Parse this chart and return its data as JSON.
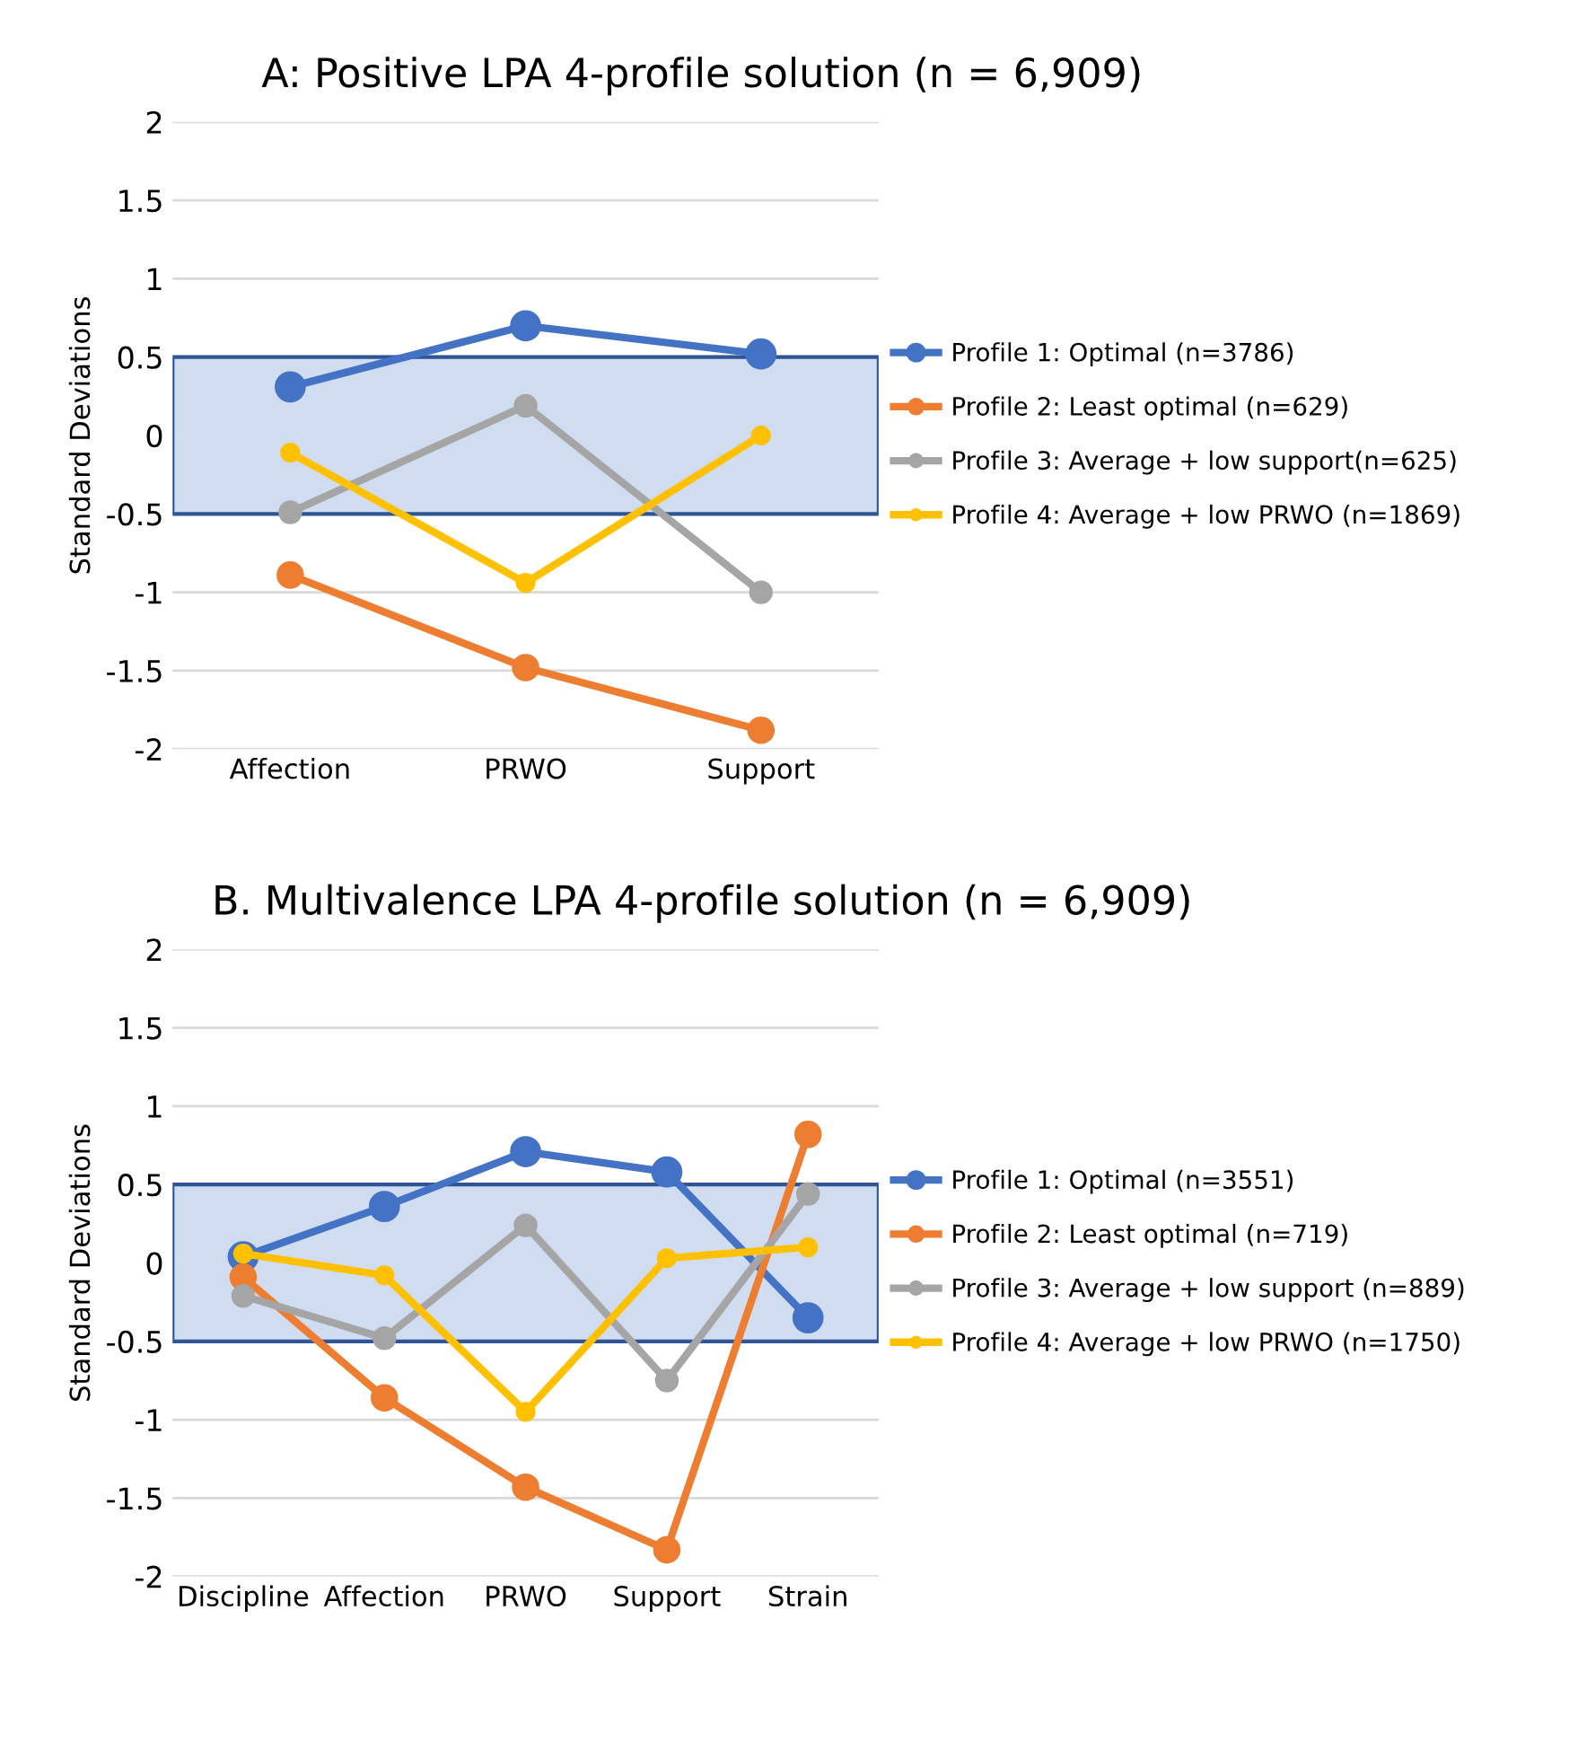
{
  "chart_data": [
    {
      "type": "line",
      "title": "A: Positive LPA 4-profile solution (n = 6,909)",
      "ylabel": "Standard Deviations",
      "categories": [
        "Affection",
        "PRWO",
        "Support"
      ],
      "ylim": [
        -2,
        2
      ],
      "yticks": [
        {
          "value": -2,
          "label": "-2"
        },
        {
          "value": -1.5,
          "label": "-1.5"
        },
        {
          "value": -1,
          "label": "-1"
        },
        {
          "value": -0.5,
          "label": "-0.5"
        },
        0,
        0.5,
        1,
        1.5,
        2
      ],
      "grid": "y",
      "legend": "right",
      "marker": "circle",
      "line_style": "solid",
      "bands": [
        {
          "axis": "y",
          "from": -0.5,
          "to": 0.5,
          "color": "#d0dcef"
        }
      ],
      "series": [
        {
          "name": "Profile 1: Optimal (n=3786)",
          "color": "#4472c4",
          "values": [
            0.31,
            0.7,
            0.52
          ]
        },
        {
          "name": "Profile 2: Least optimal (n=629)",
          "color": "#ed7d31",
          "values": [
            -0.89,
            -1.48,
            -1.88
          ]
        },
        {
          "name": "Profile 3: Average + low support(n=625)",
          "color": "#a5a5a5",
          "values": [
            -0.49,
            0.19,
            -1.0
          ]
        },
        {
          "name": "Profile 4: Average + low PRWO (n=1869)",
          "color": "#ffc000",
          "values": [
            -0.11,
            -0.94,
            0.0
          ]
        }
      ]
    },
    {
      "type": "line",
      "title": "B. Multivalence LPA 4-profile solution (n = 6,909)",
      "ylabel": "Standard Deviations",
      "categories": [
        "Discipline",
        "Affection",
        "PRWO",
        "Support",
        "Strain"
      ],
      "ylim": [
        -2,
        2
      ],
      "yticks": [
        {
          "value": -2,
          "label": "-2"
        },
        {
          "value": -1.5,
          "label": "-1.5"
        },
        {
          "value": -1,
          "label": "-1"
        },
        {
          "value": -0.5,
          "label": "-0.5"
        },
        0,
        0.5,
        1,
        1.5,
        2
      ],
      "grid": "y",
      "legend": "right",
      "marker": "circle",
      "line_style": "solid",
      "bands": [
        {
          "axis": "y",
          "from": -0.5,
          "to": 0.5,
          "color": "#d0dcef"
        }
      ],
      "series": [
        {
          "name": "Profile 1: Optimal (n=3551)",
          "color": "#4472c4",
          "values": [
            0.04,
            0.36,
            0.71,
            0.58,
            -0.35
          ]
        },
        {
          "name": "Profile 2: Least optimal (n=719)",
          "color": "#ed7d31",
          "values": [
            -0.09,
            -0.86,
            -1.43,
            -1.83,
            0.82
          ]
        },
        {
          "name": "Profile 3: Average + low support (n=889)",
          "color": "#a5a5a5",
          "values": [
            -0.21,
            -0.48,
            0.24,
            -0.75,
            0.44
          ]
        },
        {
          "name": "Profile 4: Average + low PRWO (n=1750)",
          "color": "#ffc000",
          "values": [
            0.06,
            -0.08,
            -0.95,
            0.03,
            0.1
          ]
        }
      ]
    }
  ]
}
